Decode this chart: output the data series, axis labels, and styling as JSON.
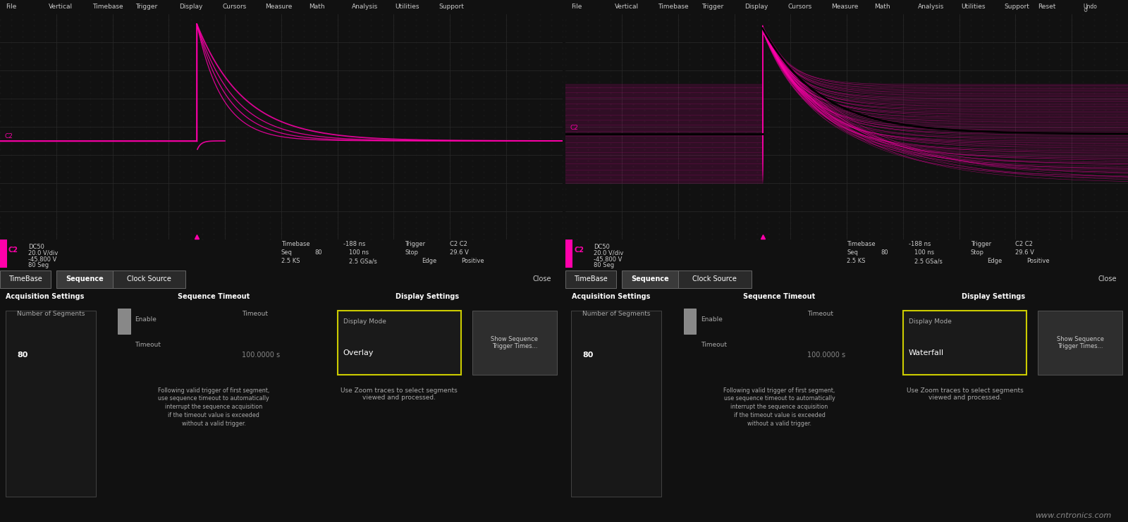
{
  "bg_color": "#000000",
  "panel_bg": "#111111",
  "toolbar_bg": "#252525",
  "grid_color": "#2a2a2a",
  "subgrid_color": "#1a1a1a",
  "signal_color": "#ff00aa",
  "status_bg": "#1a1a1a",
  "bottom_bg": "#222222",
  "yellow_border": "#cccc00",
  "toolbar_items": [
    "File",
    "Vertical",
    "Timebase",
    "Trigger",
    "Display",
    "Cursors",
    "Measure",
    "Math",
    "Analysis",
    "Utilities",
    "Support"
  ],
  "tabs": [
    "TimeBase",
    "Sequence",
    "Clock Source"
  ],
  "active_tab": "Sequence",
  "acq_label": "Acquisition Settings",
  "acq_segments_label": "Number of Segments",
  "acq_segments_value": "80",
  "seq_timeout_label": "Sequence Timeout",
  "timeout_value": "100.0000 s",
  "seq_description": "Following valid trigger of first segment,\nuse sequence timeout to automatically\ninterrupt the sequence acquisition\nif the timeout value is exceeded\nwithout a valid trigger.",
  "display_settings_label": "Display Settings",
  "display_mode_label": "Display Mode",
  "display_mode_value_left": "Overlay",
  "display_mode_value_right": "Waterfall",
  "show_seq_btn": "Show Sequence\nTrigger Times...",
  "zoom_traces_text": "Use Zoom traces to select segments\nviewed and processed.",
  "watermark_text": "www.cntronics.com",
  "ch_info": [
    "DC50",
    "20.0 V/div",
    "-45.800 V",
    "80 Seg"
  ],
  "timebase_info": "Timebase  -188 ns  Trigger",
  "seq_info": "Seq  80    100 ns    Stop    29.6 V",
  "ks_info": "2.5 KS    2.5 GSa/s    Edge    Positive"
}
